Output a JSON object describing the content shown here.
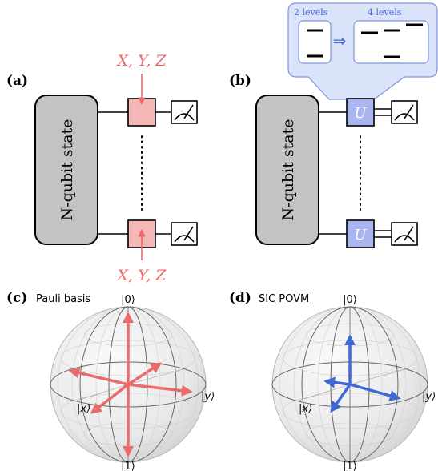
{
  "panels": {
    "a": {
      "tag": "(a)",
      "state_label": "N-qubit state",
      "op_top": "X, Y, Z",
      "op_bottom": "X, Y, Z",
      "dots": "⋮"
    },
    "b": {
      "tag": "(b)",
      "state_label": "N-qubit state",
      "gate_label": "U",
      "dots": "⋮",
      "callout_left": "2 levels",
      "callout_right": "4 levels",
      "arrow": "⇒"
    },
    "c": {
      "tag": "(c)",
      "title": "Pauli basis",
      "ket0": "|0⟩",
      "ket1": "|1⟩",
      "ketx": "|x⟩",
      "kety": "|y⟩"
    },
    "d": {
      "tag": "(d)",
      "title": "SIC POVM",
      "ket0": "|0⟩",
      "ket1": "|1⟩",
      "ketx": "|x⟩",
      "kety": "|y⟩"
    }
  },
  "colors": {
    "pauli": "#e96b6b",
    "pauli_fill": "#f5b6b6",
    "sic": "#3f67d6",
    "gate_fill": "#a9b6ef",
    "callout_fill": "#dbe3fa",
    "state_fill": "#c3c3c3"
  }
}
